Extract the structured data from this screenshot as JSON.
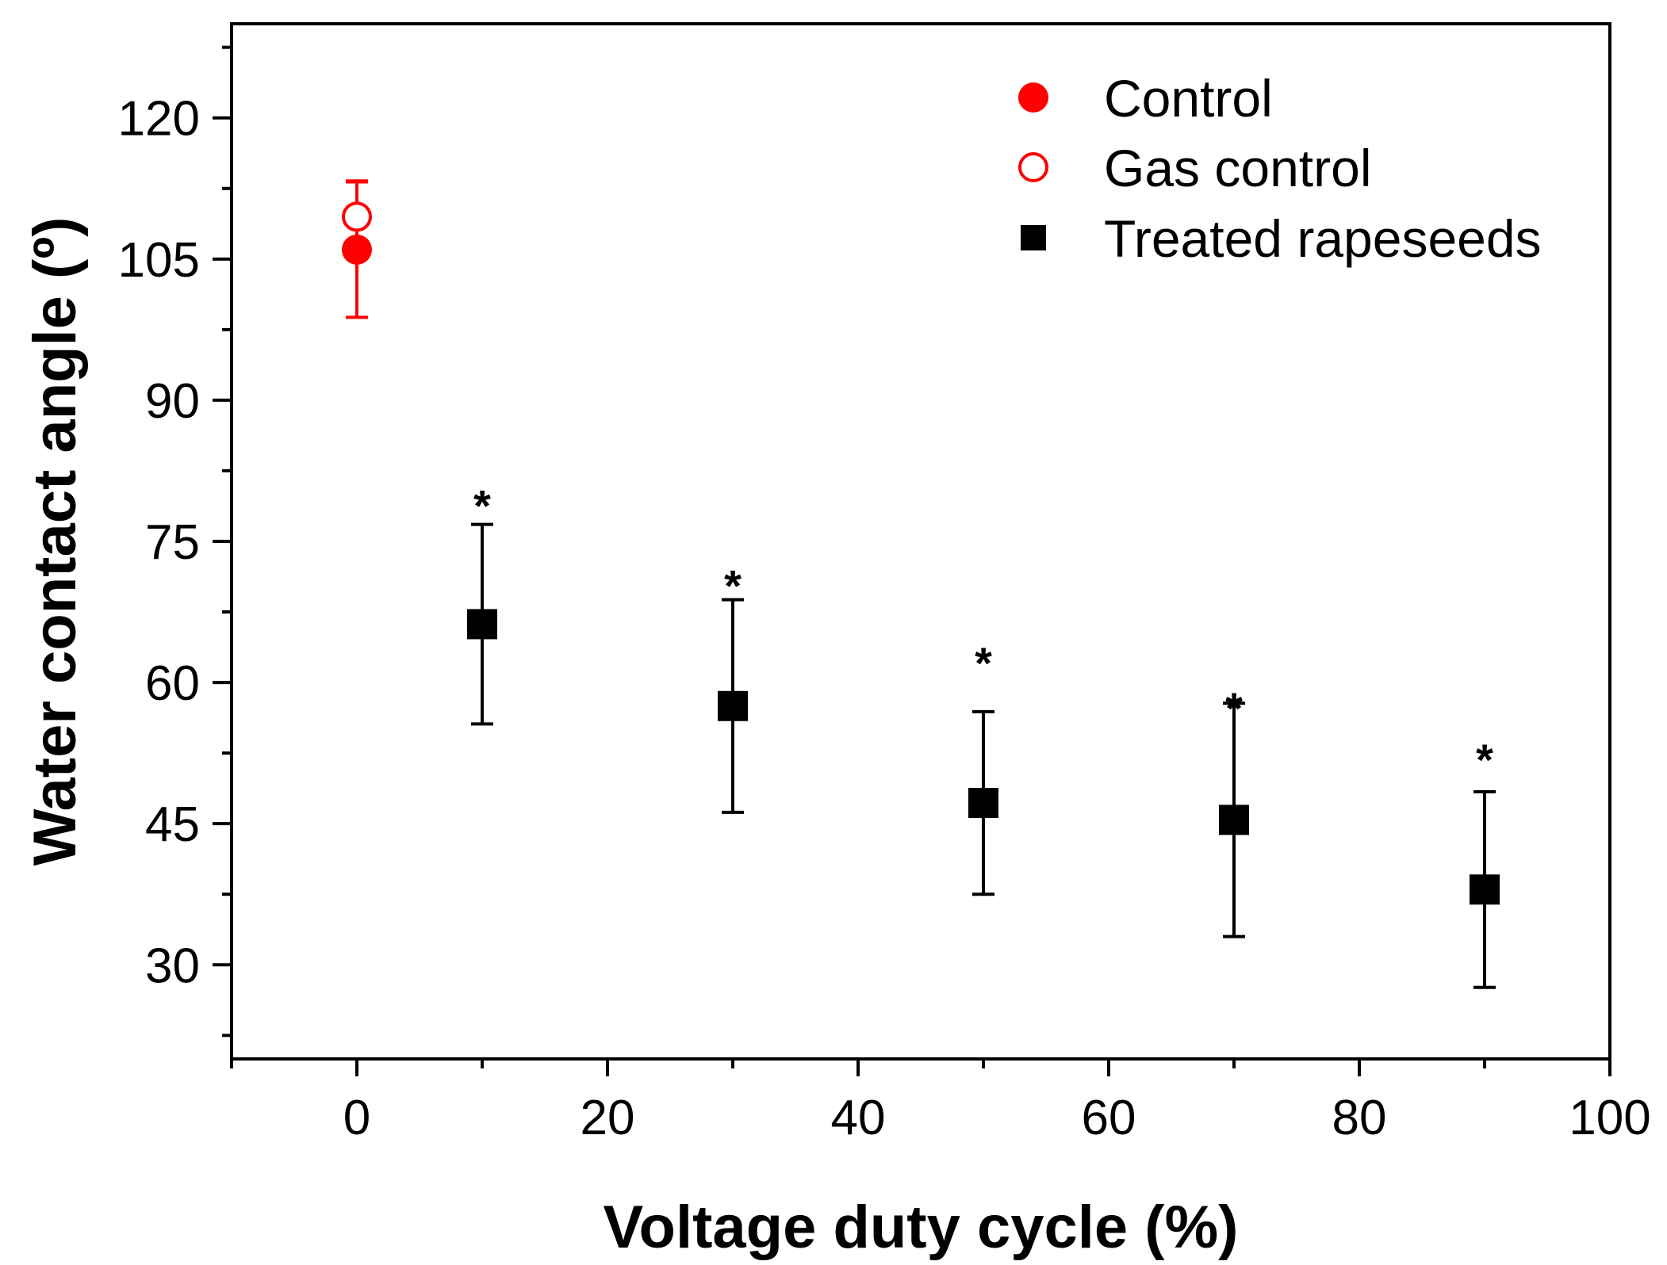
{
  "chart_data": {
    "type": "scatter",
    "title": "",
    "xlabel": "Voltage duty cycle (%)",
    "ylabel": "Water contact angle (º)",
    "xlim": [
      -10,
      100
    ],
    "ylim": [
      20,
      130
    ],
    "x_ticks": [
      0,
      20,
      40,
      60,
      80,
      100
    ],
    "y_ticks": [
      30,
      45,
      60,
      75,
      90,
      105,
      120
    ],
    "x_tick_labels": [
      "0",
      "20",
      "40",
      "60",
      "80",
      "100"
    ],
    "y_tick_labels": [
      "30",
      "45",
      "60",
      "75",
      "90",
      "105",
      "120"
    ],
    "legend_position": "top-right",
    "series": [
      {
        "name": "Control",
        "marker": "filled-circle",
        "color": "#ff0000",
        "points": [
          {
            "x": 0,
            "y": 106,
            "err": 7.2
          }
        ]
      },
      {
        "name": "Gas control",
        "marker": "open-circle",
        "color": "#ff0000",
        "points": [
          {
            "x": 0,
            "y": 109.5,
            "err": 3.8
          }
        ]
      },
      {
        "name": "Treated rapeseeds",
        "marker": "filled-square",
        "color": "#000000",
        "points": [
          {
            "x": 10,
            "y": 66.2,
            "err": 10.6
          },
          {
            "x": 30,
            "y": 57.5,
            "err": 11.3
          },
          {
            "x": 50,
            "y": 47.2,
            "err": 9.7
          },
          {
            "x": 70,
            "y": 45.4,
            "err": 12.4
          },
          {
            "x": 90,
            "y": 38.0,
            "err": 10.4
          }
        ]
      }
    ],
    "annotations": [
      {
        "x": 10,
        "y": 79.5,
        "text": "*"
      },
      {
        "x": 30,
        "y": 71.0,
        "text": "*"
      },
      {
        "x": 50,
        "y": 62.8,
        "text": "*"
      },
      {
        "x": 70,
        "y": 58.0,
        "text": "*"
      },
      {
        "x": 90,
        "y": 52.5,
        "text": "*"
      }
    ]
  }
}
